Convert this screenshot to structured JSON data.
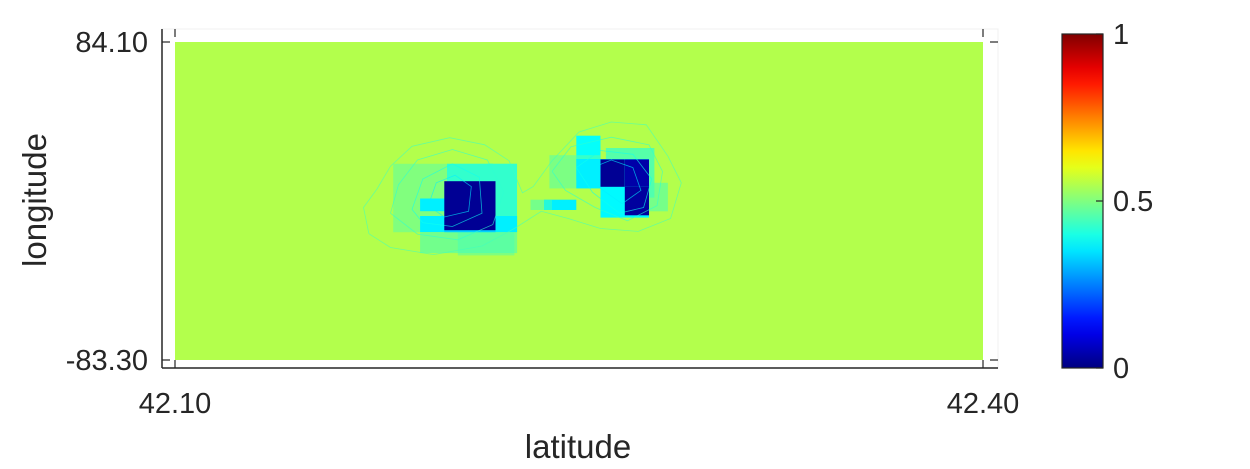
{
  "chart_data": {
    "type": "heatmap",
    "title": "",
    "xlabel": "latitude",
    "ylabel": "longitude",
    "xlim": [
      42.1,
      42.4
    ],
    "ylim": [
      -83.3,
      84.1
    ],
    "x_tick_labels": [
      "42.10",
      "42.40"
    ],
    "y_tick_labels": [
      "84.10",
      "-83.30"
    ],
    "background_value": 0.55,
    "cells": [
      {
        "x": [
          42.2,
          42.21
        ],
        "y": [
          -7.1,
          -2.6
        ],
        "value": 0.45,
        "alpha": 0.5
      },
      {
        "x": [
          42.2,
          42.219
        ],
        "y": [
          -10.7,
          7.0
        ],
        "value": 0.42
      },
      {
        "x": [
          42.201,
          42.218
        ],
        "y": [
          -16.0,
          20.0
        ],
        "value": 0.38
      },
      {
        "x": [
          42.216,
          42.227
        ],
        "y": [
          -16.0,
          20.0
        ],
        "value": 0.38
      },
      {
        "x": [
          42.181,
          42.227
        ],
        "y": [
          -16.0,
          20.0
        ],
        "value": 0.46,
        "alpha": 0.55
      },
      {
        "x": [
          42.191,
          42.227
        ],
        "y": [
          -16.0,
          -7.5
        ],
        "value": 0.36
      },
      {
        "x": [
          42.191,
          42.227
        ],
        "y": [
          -27.0,
          -16.0
        ],
        "value": 0.46,
        "alpha": 0.7
      },
      {
        "x": [
          42.205,
          42.226
        ],
        "y": [
          -28.2,
          -16.0
        ],
        "value": 0.44,
        "alpha": 0.45
      },
      {
        "x": [
          42.191,
          42.201
        ],
        "y": [
          -5.0,
          1.7
        ],
        "value": 0.36
      },
      {
        "x": [
          42.2,
          42.219
        ],
        "y": [
          -16.0,
          -8.8
        ],
        "value": 0.33
      },
      {
        "x": [
          42.2,
          42.219
        ],
        "y": [
          -15.0,
          10.8
        ],
        "value": 0.02
      },
      {
        "x": [
          42.237,
          42.249
        ],
        "y": [
          -4.3,
          1.1
        ],
        "value": 0.36
      },
      {
        "x": [
          42.232,
          42.24
        ],
        "y": [
          -4.3,
          1.1
        ],
        "value": 0.44,
        "alpha": 0.55
      },
      {
        "x": [
          42.249,
          42.258
        ],
        "y": [
          11.5,
          34.8
        ],
        "value": 0.38
      },
      {
        "x": [
          42.26,
          42.278
        ],
        "y": [
          2.2,
          28.3
        ],
        "value": 0.42,
        "alpha": 0.7
      },
      {
        "x": [
          42.239,
          42.258
        ],
        "y": [
          7.0,
          24.5
        ],
        "value": 0.46,
        "alpha": 0.6
      },
      {
        "x": [
          42.249,
          42.276
        ],
        "y": [
          7.0,
          22.5
        ],
        "value": 0.36
      },
      {
        "x": [
          42.258,
          42.276
        ],
        "y": [
          -8.3,
          10.0
        ],
        "value": 0.37
      },
      {
        "x": [
          42.276,
          42.283
        ],
        "y": [
          -5.0,
          10.0
        ],
        "value": 0.45,
        "alpha": 0.6
      },
      {
        "x": [
          42.258,
          42.267
        ],
        "y": [
          7.9,
          22.3
        ],
        "value": 0.02
      },
      {
        "x": [
          42.267,
          42.276
        ],
        "y": [
          7.9,
          22.3
        ],
        "value": 0.04
      },
      {
        "x": [
          42.267,
          42.276
        ],
        "y": [
          -7.1,
          7.9
        ],
        "value": 0.03
      }
    ],
    "contours": [
      {
        "value": 0.54,
        "points": [
          [
            42.172,
            -16.8
          ],
          [
            42.17,
            -3.0
          ],
          [
            42.175,
            6.7
          ],
          [
            42.18,
            18.7
          ],
          [
            42.188,
            29.2
          ],
          [
            42.202,
            33.7
          ],
          [
            42.215,
            30.0
          ],
          [
            42.224,
            21.6
          ],
          [
            42.229,
            4.7
          ],
          [
            42.233,
            8.0
          ],
          [
            42.24,
            21.6
          ],
          [
            42.25,
            36.7
          ],
          [
            42.262,
            42.0
          ],
          [
            42.275,
            40.5
          ],
          [
            42.283,
            24.0
          ],
          [
            42.288,
            10.0
          ],
          [
            42.284,
            -8.8
          ],
          [
            42.272,
            -15.6
          ],
          [
            42.258,
            -14.1
          ],
          [
            42.246,
            -8.8
          ],
          [
            42.236,
            -5.0
          ],
          [
            42.226,
            -14.1
          ],
          [
            42.214,
            -23.3
          ],
          [
            42.196,
            -27.8
          ],
          [
            42.18,
            -24.1
          ],
          [
            42.172,
            -16.8
          ]
        ]
      },
      {
        "value": 0.52,
        "points": [
          [
            42.18,
            -6.0
          ],
          [
            42.183,
            9.0
          ],
          [
            42.19,
            22.0
          ],
          [
            42.203,
            27.5
          ],
          [
            42.216,
            22.0
          ],
          [
            42.222,
            5.0
          ],
          [
            42.218,
            -12.0
          ],
          [
            42.205,
            -20.0
          ],
          [
            42.19,
            -17.0
          ],
          [
            42.18,
            -6.0
          ]
        ]
      },
      {
        "value": 0.52,
        "points": [
          [
            42.24,
            16.0
          ],
          [
            42.247,
            29.0
          ],
          [
            42.262,
            34.0
          ],
          [
            42.276,
            30.0
          ],
          [
            42.281,
            16.0
          ],
          [
            42.279,
            -2.0
          ],
          [
            42.268,
            -10.0
          ],
          [
            42.256,
            -3.0
          ],
          [
            42.245,
            6.0
          ],
          [
            42.24,
            16.0
          ]
        ]
      },
      {
        "value": 0.49,
        "points": [
          [
            42.188,
            -4.0
          ],
          [
            42.192,
            12.0
          ],
          [
            42.203,
            20.0
          ],
          [
            42.213,
            13.0
          ],
          [
            42.214,
            -6.0
          ],
          [
            42.203,
            -13.0
          ],
          [
            42.192,
            -11.0
          ],
          [
            42.188,
            -4.0
          ]
        ]
      },
      {
        "value": 0.49,
        "points": [
          [
            42.249,
            18.0
          ],
          [
            42.258,
            27.0
          ],
          [
            42.27,
            25.0
          ],
          [
            42.277,
            12.0
          ],
          [
            42.274,
            -3.0
          ],
          [
            42.265,
            -6.0
          ],
          [
            42.255,
            5.0
          ],
          [
            42.249,
            18.0
          ]
        ]
      },
      {
        "value": 0.46,
        "points": [
          [
            42.194,
            -2.0
          ],
          [
            42.197,
            10.0
          ],
          [
            42.204,
            14.0
          ],
          [
            42.21,
            8.0
          ],
          [
            42.209,
            -5.0
          ],
          [
            42.2,
            -8.0
          ],
          [
            42.194,
            -2.0
          ]
        ]
      },
      {
        "value": 0.46,
        "points": [
          [
            42.255,
            18.0
          ],
          [
            42.262,
            22.0
          ],
          [
            42.27,
            18.0
          ],
          [
            42.273,
            6.0
          ],
          [
            42.266,
            -1.0
          ],
          [
            42.258,
            7.0
          ],
          [
            42.255,
            18.0
          ]
        ]
      }
    ],
    "colorbar": {
      "colormap": "jet",
      "limits": [
        0,
        1
      ],
      "tick_values": [
        0,
        0.5,
        1
      ],
      "tick_labels": [
        "0",
        "0.5",
        "1"
      ]
    },
    "grid": false,
    "legend": "none"
  }
}
